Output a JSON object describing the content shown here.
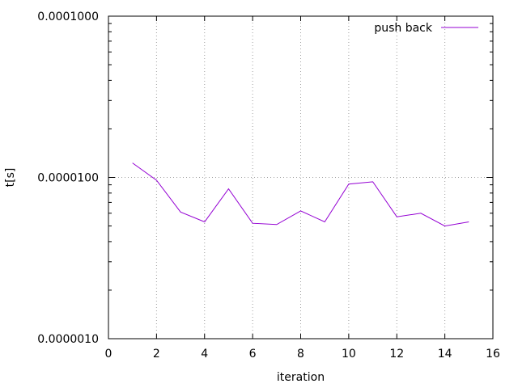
{
  "chart_data": {
    "type": "line",
    "xlabel": "iteration",
    "ylabel": "t[s]",
    "xlim": [
      0,
      16
    ],
    "ylim": [
      1e-06,
      0.0001
    ],
    "y_scale": "log",
    "grid": true,
    "legend_position": "top-right",
    "x_ticks": [
      0,
      2,
      4,
      6,
      8,
      10,
      12,
      14,
      16
    ],
    "y_ticks": [
      {
        "value": 1e-06,
        "label": "0.0000010"
      },
      {
        "value": 1e-05,
        "label": "0.0000100"
      },
      {
        "value": 0.0001,
        "label": "0.0001000"
      }
    ],
    "series": [
      {
        "name": "push back",
        "color": "#9400d3",
        "x": [
          1,
          2,
          3,
          4,
          5,
          6,
          7,
          8,
          9,
          10,
          11,
          12,
          13,
          14,
          15
        ],
        "y": [
          1.23e-05,
          9.6e-06,
          6.1e-06,
          5.3e-06,
          8.5e-06,
          5.2e-06,
          5.1e-06,
          6.2e-06,
          5.3e-06,
          9.1e-06,
          9.4e-06,
          5.7e-06,
          6e-06,
          5e-06,
          5.3e-06
        ]
      }
    ]
  }
}
